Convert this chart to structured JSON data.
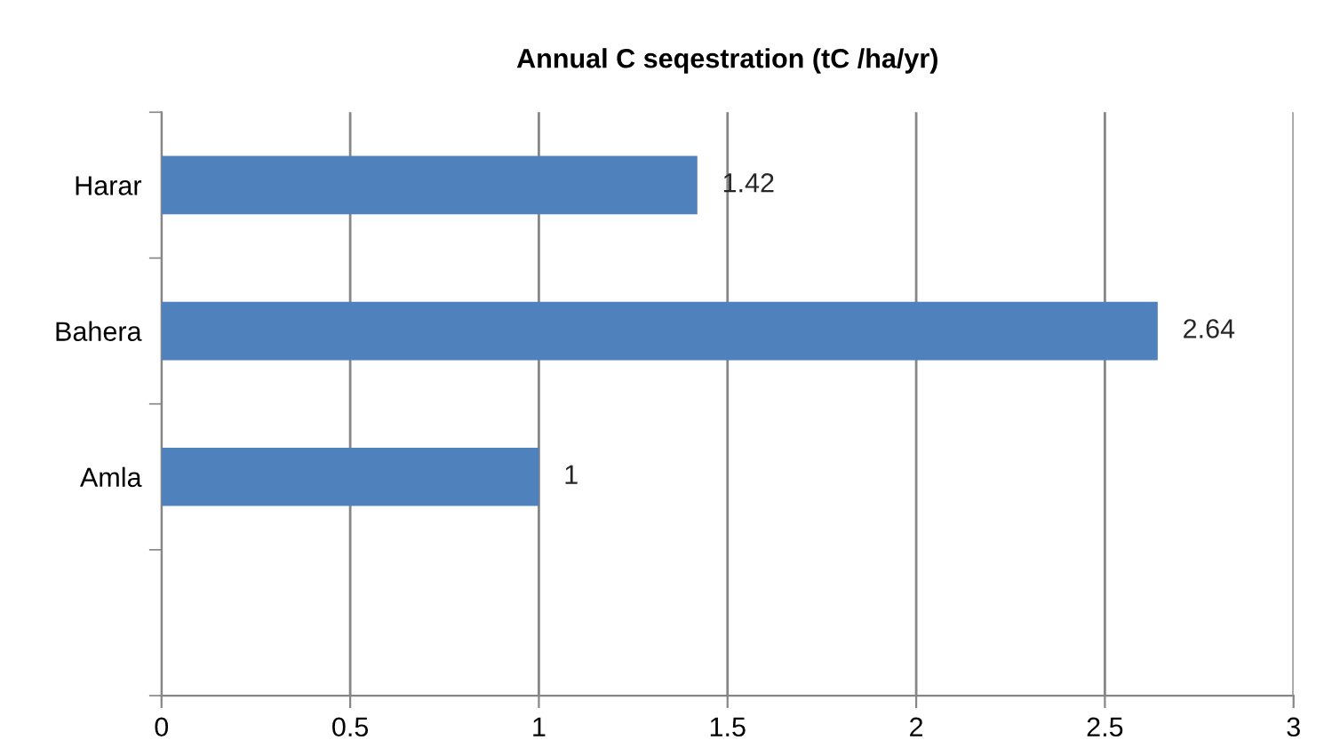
{
  "chart_data": {
    "type": "bar",
    "orientation": "horizontal",
    "title": "Annual C seqestration (tC /ha/yr)",
    "categories": [
      "Harar",
      "Bahera",
      "Amla",
      null
    ],
    "values": [
      1.42,
      2.64,
      1,
      null
    ],
    "color": "#4f81bd",
    "xlim": [
      0,
      3
    ],
    "xticks": [
      0,
      0.5,
      1,
      1.5,
      2,
      2.5,
      3
    ],
    "grid": "x",
    "data_labels": true
  }
}
